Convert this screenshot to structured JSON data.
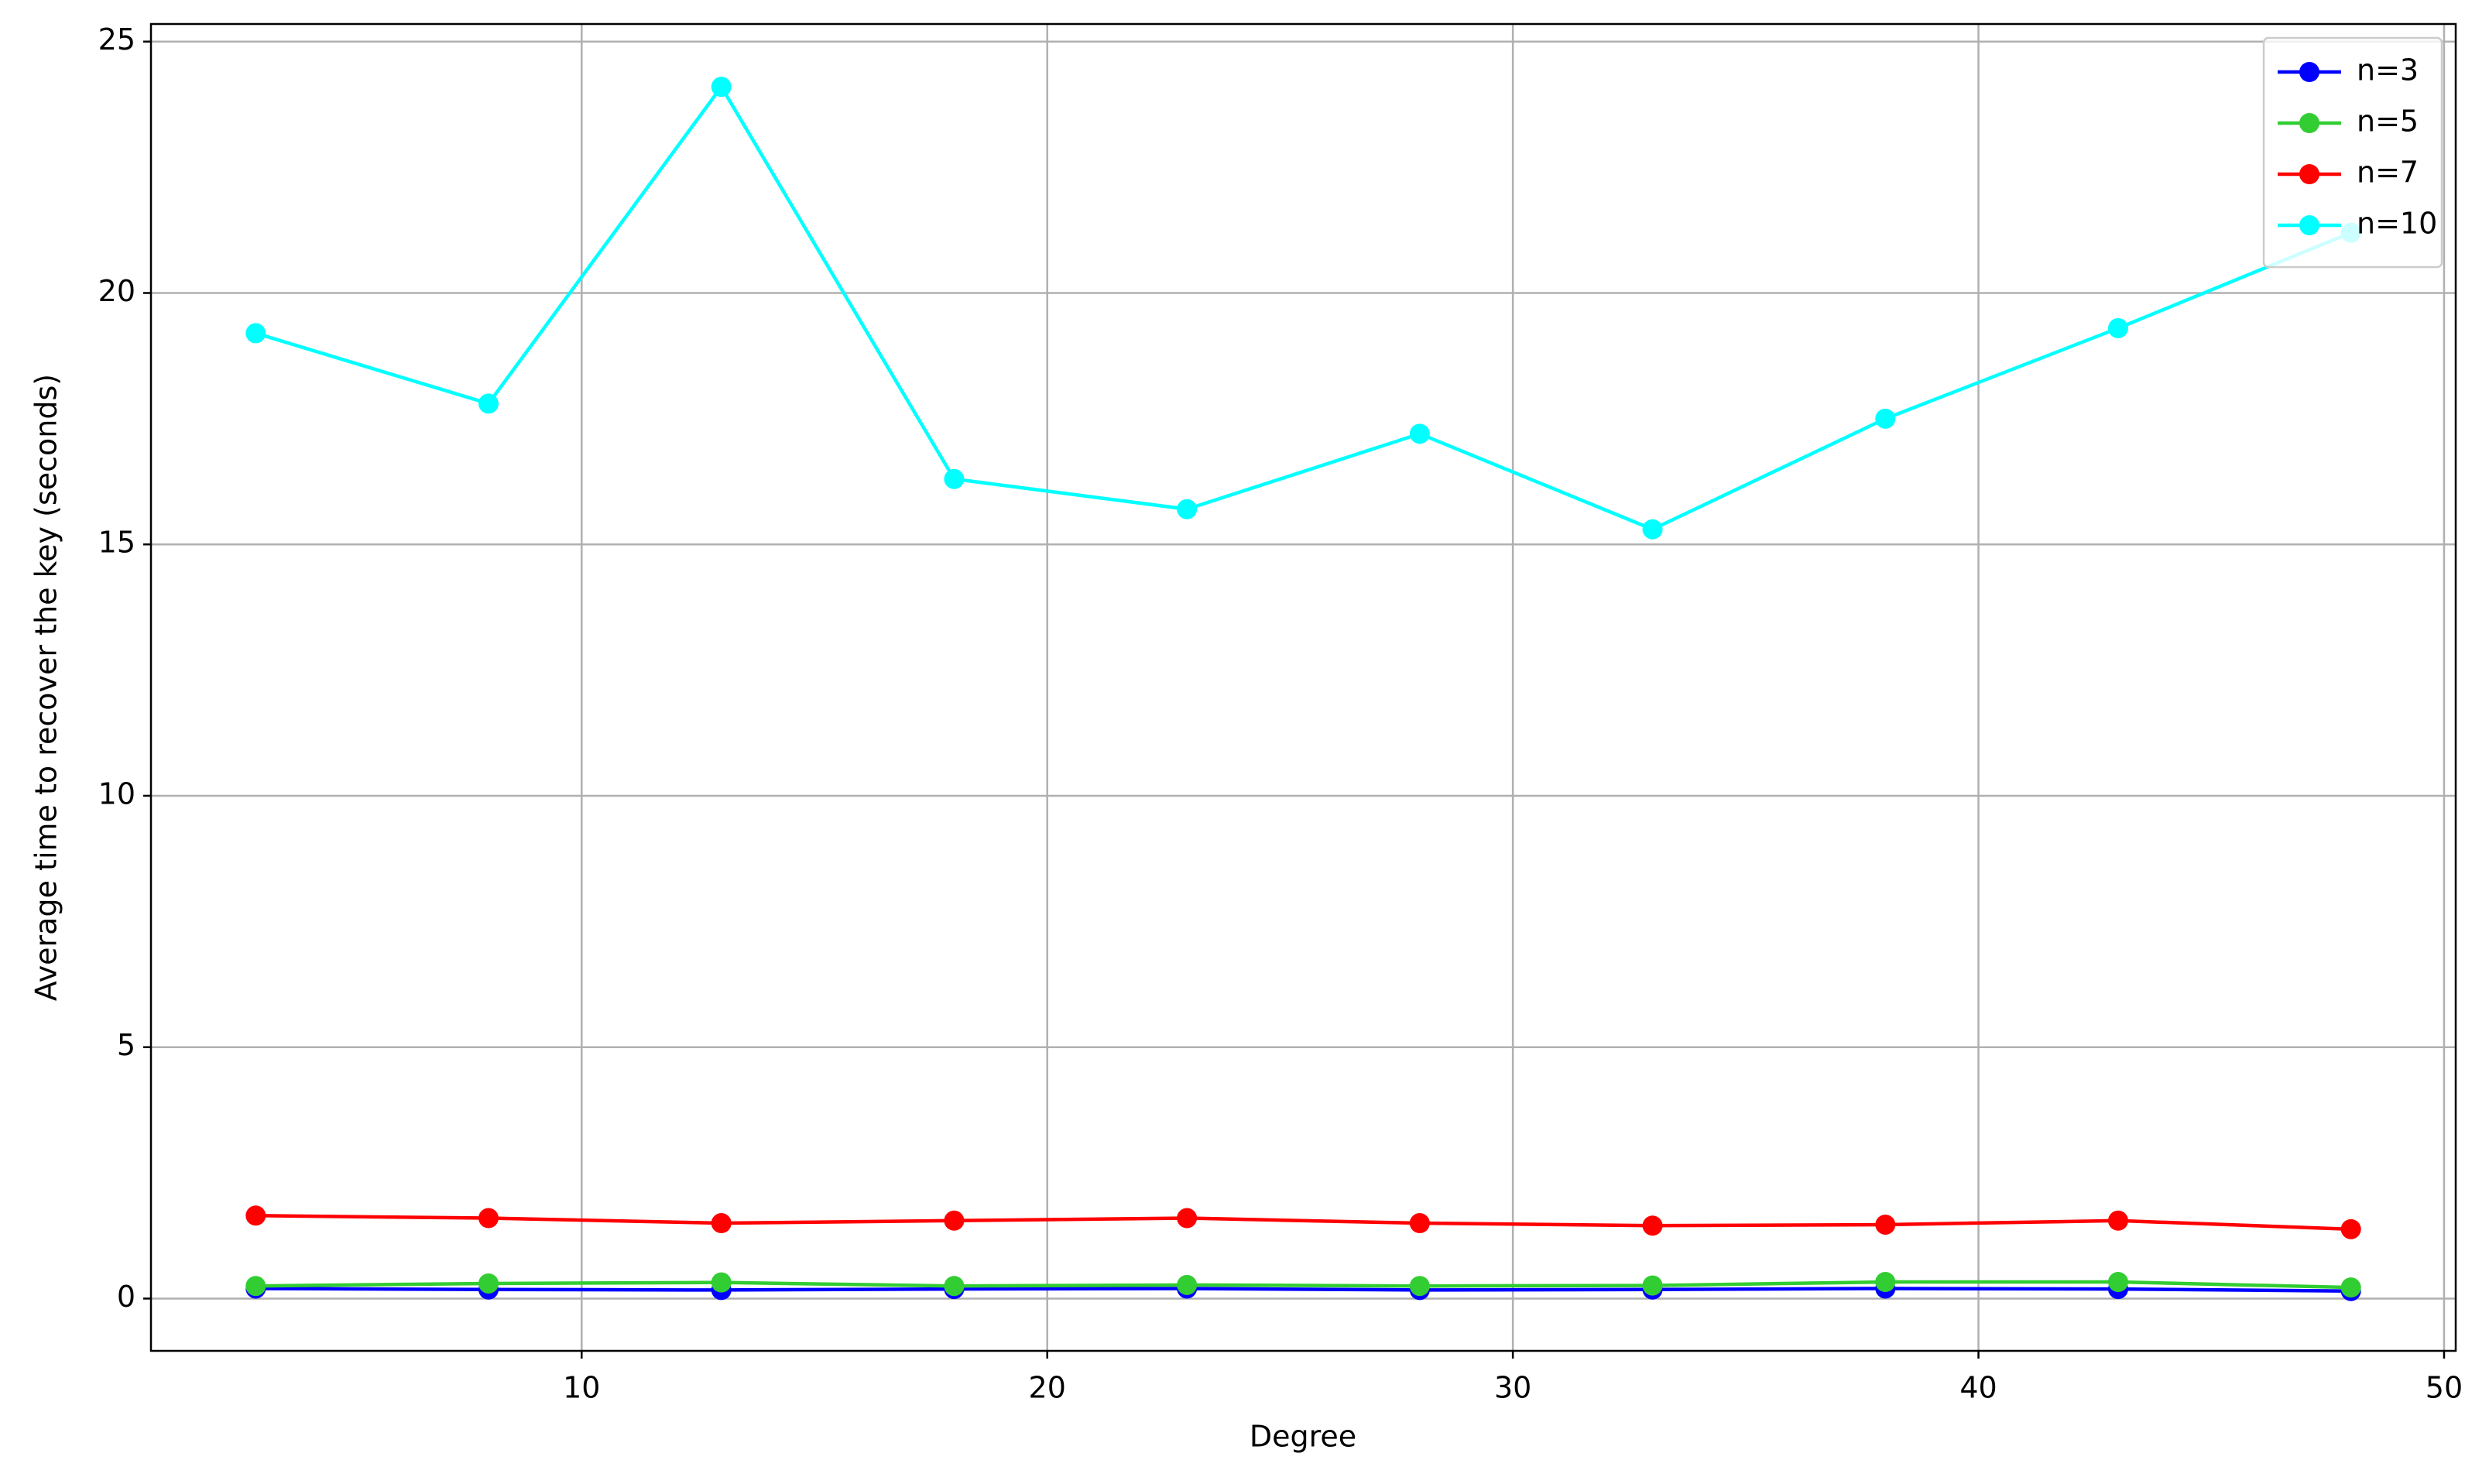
{
  "chart_data": {
    "type": "line",
    "x_label": "Degree",
    "y_label": "Average time to recover the key (seconds)",
    "x": [
      3,
      8,
      13,
      18,
      23,
      28,
      33,
      38,
      43,
      48
    ],
    "series": [
      {
        "name": "n=3",
        "color": "#0000ff",
        "values": [
          0.2,
          0.18,
          0.17,
          0.19,
          0.2,
          0.17,
          0.18,
          0.2,
          0.19,
          0.15
        ]
      },
      {
        "name": "n=5",
        "color": "#32cd32",
        "values": [
          0.25,
          0.3,
          0.32,
          0.25,
          0.27,
          0.25,
          0.26,
          0.33,
          0.33,
          0.22
        ]
      },
      {
        "name": "n=7",
        "color": "#ff0000",
        "values": [
          1.65,
          1.6,
          1.5,
          1.55,
          1.6,
          1.5,
          1.45,
          1.47,
          1.55,
          1.38
        ]
      },
      {
        "name": "n=10",
        "color": "#00ffff",
        "values": [
          19.2,
          17.8,
          24.1,
          16.3,
          15.7,
          17.2,
          15.3,
          17.5,
          19.3,
          21.2
        ]
      }
    ],
    "xlim": [
      0.75,
      50.25
    ],
    "xticks": [
      10,
      20,
      30,
      40,
      50
    ],
    "ylim": [
      -1.04,
      25.35
    ],
    "yticks": [
      0,
      5,
      10,
      15,
      20,
      25
    ],
    "grid": true,
    "legend": "upper-right"
  }
}
